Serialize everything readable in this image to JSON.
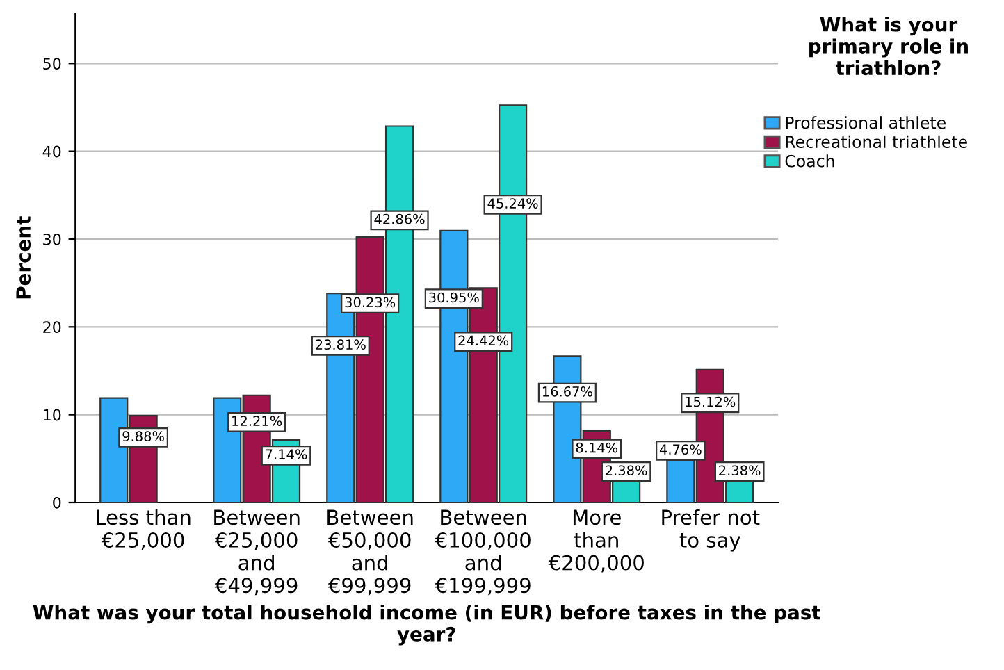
{
  "chart_data": {
    "type": "bar",
    "xlabel": "What was your total household income (in EUR) before taxes in the past year?",
    "ylabel": "Percent",
    "legend_title": "What is your primary role in triathlon?",
    "categories": [
      "Less than\n€25,000",
      "Between\n€25,000\nand\n€49,999",
      "Between\n€50,000\nand\n€99,999",
      "Between\n€100,000\nand\n€199,999",
      "More\nthan\n€200,000",
      "Prefer not\nto say"
    ],
    "series": [
      {
        "name": "Professional athlete",
        "color": "#2ea9f6",
        "values": [
          11.9,
          11.9,
          23.81,
          30.95,
          16.67,
          4.76
        ],
        "value_labels": [
          null,
          null,
          "23.81%",
          "30.95%",
          "16.67%",
          "4.76%"
        ]
      },
      {
        "name": "Recreational triathlete",
        "color": "#a0124a",
        "values": [
          9.88,
          12.21,
          30.23,
          24.42,
          8.14,
          15.12
        ],
        "value_labels": [
          "9.88%",
          "12.21%",
          "30.23%",
          "24.42%",
          "8.14%",
          "15.12%"
        ]
      },
      {
        "name": "Coach",
        "color": "#1fd3cb",
        "values": [
          null,
          7.14,
          42.86,
          45.24,
          2.38,
          2.38
        ],
        "value_labels": [
          null,
          "7.14%",
          "42.86%",
          "45.24%",
          "2.38%",
          "2.38%"
        ]
      }
    ],
    "ylim": [
      0,
      55.7
    ],
    "yticks": [
      0,
      10,
      20,
      30,
      40,
      50
    ],
    "grid": "y",
    "legend": "top right"
  }
}
